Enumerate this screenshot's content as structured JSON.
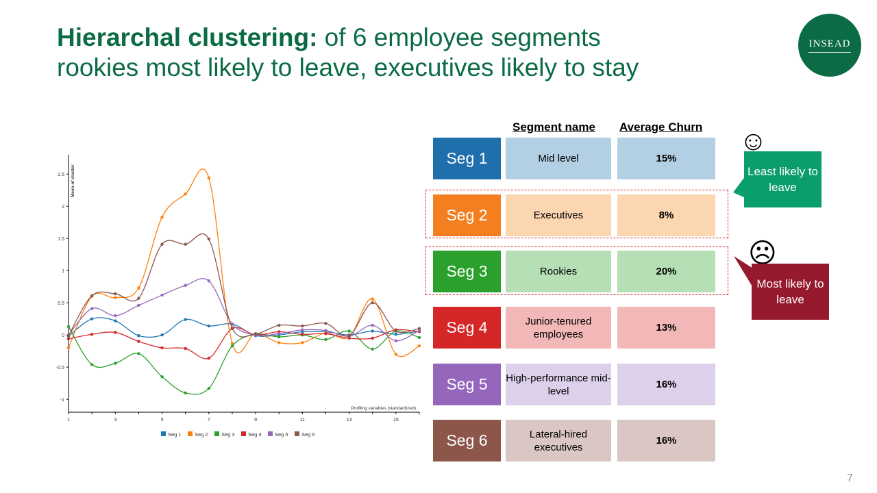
{
  "slide": {
    "title_bold": "Hierarchal clustering:",
    "title_line1_rest": " of 6 employee segments",
    "title_line2": "rookies most likely to leave, executives likely to stay",
    "logo_text": "INSEAD",
    "page_number": "7"
  },
  "table": {
    "header_name": "Segment name",
    "header_churn": "Average Churn",
    "rows": [
      {
        "seg": "Seg 1",
        "name": "Mid level",
        "churn": "15%",
        "dark": "#1f6fad",
        "light": "#b3cfe4"
      },
      {
        "seg": "Seg 2",
        "name": "Executives",
        "churn": "8%",
        "dark": "#f47f20",
        "light": "#fcd5b1"
      },
      {
        "seg": "Seg 3",
        "name": "Rookies",
        "churn": "20%",
        "dark": "#2ca02c",
        "light": "#b7dfb6"
      },
      {
        "seg": "Seg 4",
        "name": "Junior-tenured employees",
        "churn": "13%",
        "dark": "#d62728",
        "light": "#f2b8b8"
      },
      {
        "seg": "Seg 5",
        "name": "High-performance mid-level",
        "churn": "16%",
        "dark": "#9467bd",
        "light": "#ddd0ea"
      },
      {
        "seg": "Seg 6",
        "name": "Lateral-hired executives",
        "churn": "16%",
        "dark": "#8c564b",
        "light": "#dac7c3"
      }
    ]
  },
  "callouts": {
    "least": {
      "text": "Least likely to leave",
      "color": "#0a9e6a",
      "icon": "smiley-face-icon"
    },
    "most": {
      "text": "Most likely to leave",
      "color": "#951a2d",
      "icon": "frowning-face-icon"
    }
  },
  "chart_data": {
    "type": "line",
    "ylabel": "Mean of cluster",
    "xlabel": "Profiling variables (standardized)",
    "xlim": [
      1,
      16
    ],
    "ylim": [
      -1.2,
      2.8
    ],
    "x_ticks": [
      1,
      3,
      5,
      7,
      9,
      11,
      13,
      15
    ],
    "y_ticks": [
      -1,
      -0.5,
      0,
      0.5,
      1,
      1.5,
      2,
      2.5
    ],
    "y_tick_labels": [
      "-1",
      "-0.5",
      "0",
      "0.5",
      "1",
      "1.5",
      "2",
      "2.5"
    ],
    "x": [
      1,
      2,
      3,
      4,
      5,
      6,
      7,
      8,
      9,
      10,
      11,
      12,
      13,
      14,
      15,
      16
    ],
    "series": [
      {
        "name": "Seg 1",
        "color": "#1f77b4",
        "values": [
          -0.02,
          0.25,
          0.22,
          -0.01,
          0.0,
          0.24,
          0.14,
          0.17,
          -0.01,
          0.0,
          0.05,
          0.05,
          0.0,
          0.06,
          0.01,
          0.06
        ]
      },
      {
        "name": "Seg 2",
        "color": "#ff7f0e",
        "values": [
          -0.2,
          0.6,
          0.58,
          0.73,
          1.83,
          2.19,
          2.44,
          -0.13,
          0.02,
          -0.12,
          -0.12,
          0.03,
          -0.03,
          0.56,
          -0.3,
          -0.17
        ]
      },
      {
        "name": "Seg 3",
        "color": "#2ca02c",
        "values": [
          0.13,
          -0.46,
          -0.44,
          -0.29,
          -0.65,
          -0.9,
          -0.83,
          -0.17,
          0.01,
          -0.03,
          0.0,
          -0.07,
          0.06,
          -0.22,
          0.06,
          -0.04
        ]
      },
      {
        "name": "Seg 4",
        "color": "#d62728",
        "values": [
          -0.06,
          0.01,
          0.04,
          -0.1,
          -0.2,
          -0.21,
          -0.36,
          0.1,
          0.0,
          0.05,
          0.01,
          0.02,
          -0.05,
          -0.05,
          0.08,
          0.05
        ]
      },
      {
        "name": "Seg 5",
        "color": "#9467bd",
        "values": [
          0.0,
          0.41,
          0.3,
          0.46,
          0.62,
          0.77,
          0.84,
          0.17,
          0.0,
          0.02,
          0.08,
          0.07,
          -0.02,
          0.15,
          -0.09,
          0.07
        ]
      },
      {
        "name": "Seg 6",
        "color": "#8c564b",
        "values": [
          -0.01,
          0.61,
          0.64,
          0.57,
          1.41,
          1.41,
          1.49,
          0.11,
          0.02,
          0.15,
          0.14,
          0.18,
          -0.01,
          0.5,
          0.06,
          0.1
        ]
      }
    ]
  }
}
